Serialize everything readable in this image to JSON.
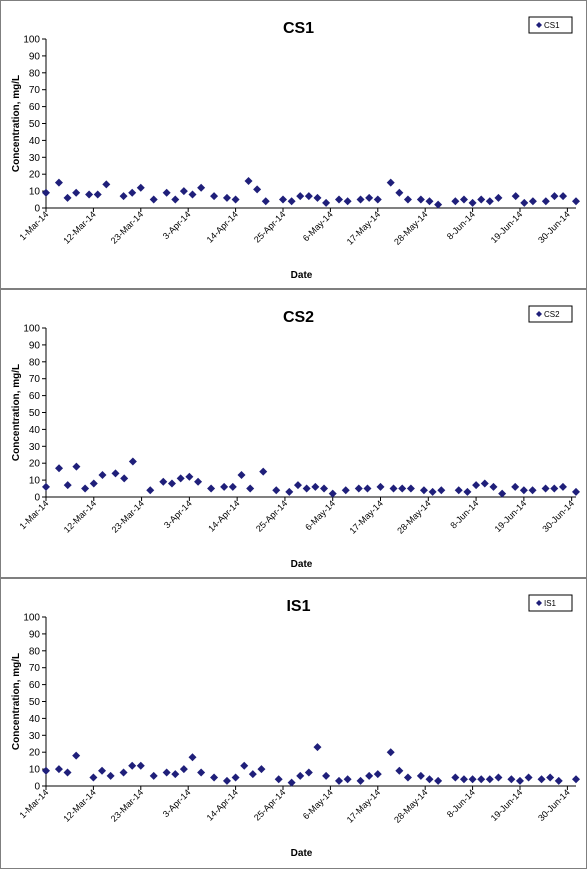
{
  "chart_data": [
    {
      "type": "scatter",
      "title": "CS1",
      "xlabel": "Date",
      "ylabel": "Concentration, mg/L",
      "ylim": [
        0,
        100
      ],
      "yticks": [
        0,
        10,
        20,
        30,
        40,
        50,
        60,
        70,
        80,
        90,
        100
      ],
      "xlim": [
        "2014-03-01",
        "2014-06-30"
      ],
      "xticks": [
        "1-Mar-14",
        "12-Mar-14",
        "23-Mar-14",
        "3-Apr-14",
        "14-Apr-14",
        "25-Apr-14",
        "6-May-14",
        "17-May-14",
        "28-May-14",
        "8-Jun-14",
        "19-Jun-14",
        "30-Jun-14"
      ],
      "legend_position": "top-right",
      "marker_color": "#1f1f7a",
      "series": [
        {
          "name": "CS1",
          "x": [
            "2014-03-01",
            "2014-03-04",
            "2014-03-06",
            "2014-03-08",
            "2014-03-11",
            "2014-03-13",
            "2014-03-15",
            "2014-03-19",
            "2014-03-21",
            "2014-03-23",
            "2014-03-26",
            "2014-03-29",
            "2014-03-31",
            "2014-04-02",
            "2014-04-04",
            "2014-04-06",
            "2014-04-09",
            "2014-04-12",
            "2014-04-14",
            "2014-04-17",
            "2014-04-19",
            "2014-04-21",
            "2014-04-25",
            "2014-04-27",
            "2014-04-29",
            "2014-05-01",
            "2014-05-03",
            "2014-05-05",
            "2014-05-08",
            "2014-05-10",
            "2014-05-13",
            "2014-05-15",
            "2014-05-17",
            "2014-05-20",
            "2014-05-22",
            "2014-05-24",
            "2014-05-27",
            "2014-05-29",
            "2014-05-31",
            "2014-06-04",
            "2014-06-06",
            "2014-06-08",
            "2014-06-10",
            "2014-06-12",
            "2014-06-14",
            "2014-06-18",
            "2014-06-20",
            "2014-06-22",
            "2014-06-25",
            "2014-06-27",
            "2014-06-29",
            "2014-07-02"
          ],
          "y": [
            9,
            15,
            6,
            9,
            8,
            8,
            14,
            7,
            9,
            12,
            5,
            9,
            5,
            10,
            8,
            12,
            7,
            6,
            5,
            16,
            11,
            4,
            5,
            4,
            7,
            7,
            6,
            3,
            5,
            4,
            5,
            6,
            5,
            15,
            9,
            5,
            5,
            4,
            2,
            4,
            5,
            3,
            5,
            4,
            6,
            7,
            3,
            4,
            4,
            7,
            7,
            4
          ]
        }
      ]
    },
    {
      "type": "scatter",
      "title": "CS2",
      "xlabel": "Date",
      "ylabel": "Concentration, mg/L",
      "ylim": [
        0,
        100
      ],
      "yticks": [
        0,
        10,
        20,
        30,
        40,
        50,
        60,
        70,
        80,
        90,
        100
      ],
      "xlim": [
        "2014-03-01",
        "2014-06-30"
      ],
      "xticks": [
        "1-Mar-14",
        "12-Mar-14",
        "23-Mar-14",
        "3-Apr-14",
        "14-Apr-14",
        "25-Apr-14",
        "6-May-14",
        "17-May-14",
        "28-May-14",
        "8-Jun-14",
        "19-Jun-14",
        "30-Jun-14"
      ],
      "legend_position": "top-right",
      "marker_color": "#1f1f7a",
      "series": [
        {
          "name": "CS2",
          "x": [
            "2014-03-01",
            "2014-03-04",
            "2014-03-06",
            "2014-03-08",
            "2014-03-10",
            "2014-03-12",
            "2014-03-14",
            "2014-03-17",
            "2014-03-19",
            "2014-03-21",
            "2014-03-25",
            "2014-03-28",
            "2014-03-30",
            "2014-04-01",
            "2014-04-03",
            "2014-04-05",
            "2014-04-08",
            "2014-04-11",
            "2014-04-13",
            "2014-04-15",
            "2014-04-17",
            "2014-04-20",
            "2014-04-23",
            "2014-04-26",
            "2014-04-28",
            "2014-04-30",
            "2014-05-02",
            "2014-05-04",
            "2014-05-06",
            "2014-05-09",
            "2014-05-12",
            "2014-05-14",
            "2014-05-17",
            "2014-05-20",
            "2014-05-22",
            "2014-05-24",
            "2014-05-27",
            "2014-05-29",
            "2014-05-31",
            "2014-06-04",
            "2014-06-06",
            "2014-06-08",
            "2014-06-10",
            "2014-06-12",
            "2014-06-14",
            "2014-06-17",
            "2014-06-19",
            "2014-06-21",
            "2014-06-24",
            "2014-06-26",
            "2014-06-28",
            "2014-07-01"
          ],
          "y": [
            6,
            17,
            7,
            18,
            5,
            8,
            13,
            14,
            11,
            21,
            4,
            9,
            8,
            11,
            12,
            9,
            5,
            6,
            6,
            13,
            5,
            15,
            4,
            3,
            7,
            5,
            6,
            5,
            2,
            4,
            5,
            5,
            6,
            5,
            5,
            5,
            4,
            3,
            4,
            4,
            3,
            7,
            8,
            6,
            2,
            6,
            4,
            4,
            5,
            5,
            6,
            3
          ]
        }
      ]
    },
    {
      "type": "scatter",
      "title": "IS1",
      "xlabel": "Date",
      "ylabel": "Concentration, mg/L",
      "ylim": [
        0,
        100
      ],
      "yticks": [
        0,
        10,
        20,
        30,
        40,
        50,
        60,
        70,
        80,
        90,
        100
      ],
      "xlim": [
        "2014-03-01",
        "2014-06-30"
      ],
      "xticks": [
        "1-Mar-14",
        "12-Mar-14",
        "23-Mar-14",
        "3-Apr-14",
        "14-Apr-14",
        "25-Apr-14",
        "6-May-14",
        "17-May-14",
        "28-May-14",
        "8-Jun-14",
        "19-Jun-14",
        "30-Jun-14"
      ],
      "legend_position": "top-right",
      "marker_color": "#1f1f7a",
      "series": [
        {
          "name": "IS1",
          "x": [
            "2014-03-01",
            "2014-03-04",
            "2014-03-06",
            "2014-03-08",
            "2014-03-12",
            "2014-03-14",
            "2014-03-16",
            "2014-03-19",
            "2014-03-21",
            "2014-03-23",
            "2014-03-26",
            "2014-03-29",
            "2014-03-31",
            "2014-04-02",
            "2014-04-04",
            "2014-04-06",
            "2014-04-09",
            "2014-04-12",
            "2014-04-14",
            "2014-04-16",
            "2014-04-18",
            "2014-04-20",
            "2014-04-24",
            "2014-04-27",
            "2014-04-29",
            "2014-05-01",
            "2014-05-03",
            "2014-05-05",
            "2014-05-08",
            "2014-05-10",
            "2014-05-13",
            "2014-05-15",
            "2014-05-17",
            "2014-05-20",
            "2014-05-22",
            "2014-05-24",
            "2014-05-27",
            "2014-05-29",
            "2014-05-31",
            "2014-06-04",
            "2014-06-06",
            "2014-06-08",
            "2014-06-10",
            "2014-06-12",
            "2014-06-14",
            "2014-06-17",
            "2014-06-19",
            "2014-06-21",
            "2014-06-24",
            "2014-06-26",
            "2014-06-28",
            "2014-07-02"
          ],
          "y": [
            9,
            10,
            8,
            18,
            5,
            9,
            6,
            8,
            12,
            12,
            6,
            8,
            7,
            10,
            17,
            8,
            5,
            3,
            5,
            12,
            7,
            10,
            4,
            2,
            6,
            8,
            23,
            6,
            3,
            4,
            3,
            6,
            7,
            20,
            9,
            5,
            6,
            4,
            3,
            5,
            4,
            4,
            4,
            4,
            5,
            4,
            3,
            5,
            4,
            5,
            3,
            4
          ]
        }
      ]
    }
  ]
}
